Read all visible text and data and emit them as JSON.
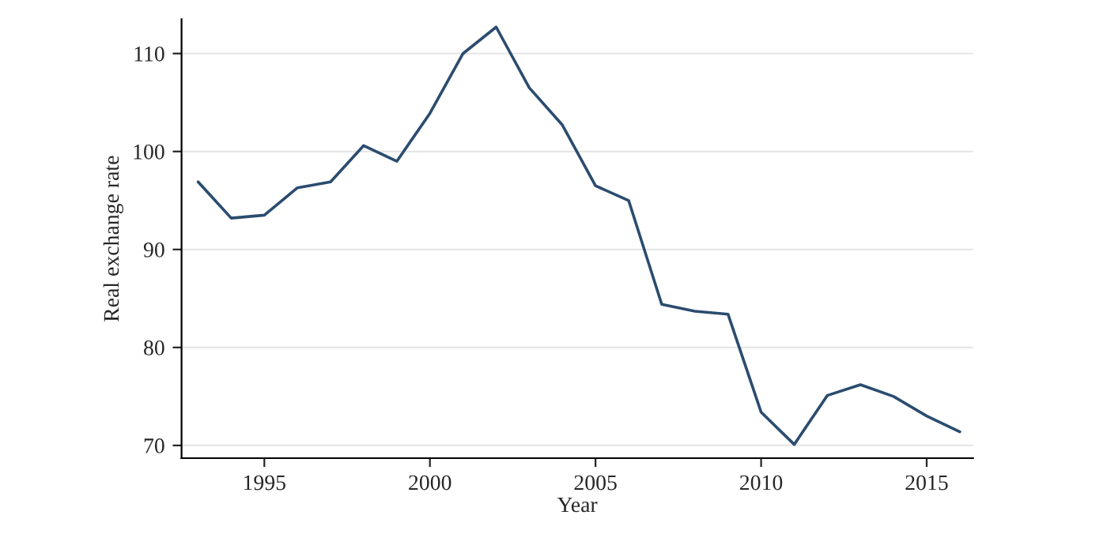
{
  "chart_data": {
    "type": "line",
    "xlabel": "Year",
    "ylabel": "Real exchange rate",
    "x": [
      1993,
      1994,
      1995,
      1996,
      1997,
      1998,
      1999,
      2000,
      2001,
      2002,
      2003,
      2004,
      2005,
      2006,
      2007,
      2008,
      2009,
      2010,
      2011,
      2012,
      2013,
      2014,
      2015,
      2016
    ],
    "series": [
      {
        "color": "#2b4c6f",
        "values": [
          96.9,
          93.2,
          93.5,
          96.3,
          96.9,
          100.6,
          99.0,
          103.9,
          110.0,
          112.7,
          106.5,
          102.7,
          96.5,
          95.0,
          84.4,
          83.7,
          83.4,
          73.4,
          70.1,
          75.1,
          76.2,
          75.0,
          73.0,
          71.4
        ]
      }
    ],
    "xlim": [
      1992.5,
      2016.4
    ],
    "xticks": [
      1995,
      2000,
      2005,
      2010,
      2015
    ],
    "ylim": [
      68.7,
      113.5
    ],
    "yticks": [
      70,
      80,
      90,
      100,
      110
    ],
    "grid": "y",
    "legend": false,
    "marker": "none",
    "line_style": "solid"
  }
}
